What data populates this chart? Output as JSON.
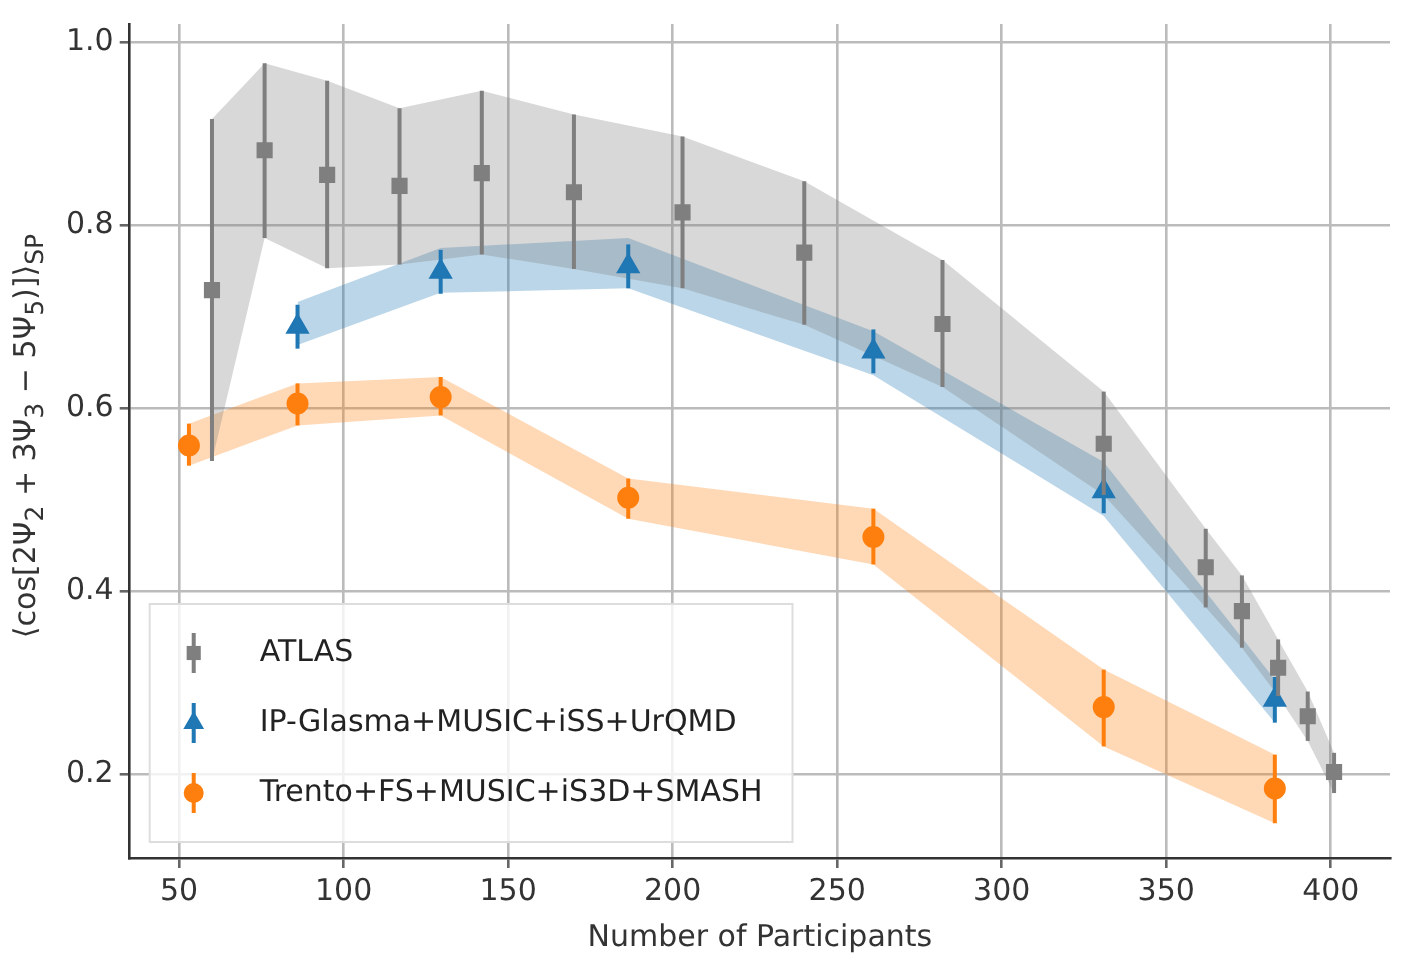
{
  "chart_data": {
    "type": "scatter",
    "xlabel": "Number of Participants",
    "ylabel": "⟨cos[2Ψ$_{2}$ + 3Ψ$_{3}$ − 5Ψ$_{5}$)]⟩$_{SP}$",
    "xlim": [
      35,
      418
    ],
    "ylim": [
      0.108,
      1.02
    ],
    "xticks": [
      50,
      100,
      150,
      200,
      250,
      300,
      350,
      400
    ],
    "yticks": [
      0.2,
      0.4,
      0.6,
      0.8,
      {
        "value": 1,
        "label": "1.0"
      }
    ],
    "grid": true,
    "legend": "bottom left",
    "series": [
      {
        "name": "ATLAS",
        "color": "#7f7f7f",
        "marker": "square",
        "x": [
          60,
          76,
          95,
          117,
          142,
          170,
          203,
          240,
          282,
          331,
          362,
          373,
          384,
          393,
          401
        ],
        "values": [
          0.729,
          0.882,
          0.855,
          0.843,
          0.857,
          0.836,
          0.814,
          0.77,
          0.692,
          0.561,
          0.426,
          0.378,
          0.316,
          0.263,
          0.202
        ],
        "errors": [
          [
            0.542,
            0.916
          ],
          [
            0.786,
            0.977
          ],
          [
            0.753,
            0.958
          ],
          [
            0.757,
            0.928
          ],
          [
            0.768,
            0.947
          ],
          [
            0.752,
            0.921
          ],
          [
            0.731,
            0.897
          ],
          [
            0.691,
            0.848
          ],
          [
            0.623,
            0.762
          ],
          [
            0.505,
            0.618
          ],
          [
            0.382,
            0.468
          ],
          [
            0.338,
            0.417
          ],
          [
            0.285,
            0.347
          ],
          [
            0.236,
            0.29
          ],
          [
            0.179,
            0.223
          ]
        ],
        "lower": [
          0.542,
          0.786,
          0.753,
          0.757,
          0.768,
          0.752,
          0.731,
          0.691,
          0.623,
          0.505,
          0.382,
          0.338,
          0.285,
          0.236,
          0.179
        ],
        "upper": [
          0.916,
          0.977,
          0.958,
          0.928,
          0.947,
          0.921,
          0.897,
          0.848,
          0.762,
          0.618,
          0.468,
          0.417,
          0.347,
          0.29,
          0.223
        ]
      },
      {
        "name": "IP-Glasma+MUSIC+iSS+UrQMD",
        "color": "#1f77b4",
        "marker": "triangle",
        "x": [
          86,
          129.5,
          186.5,
          261,
          331,
          383
        ],
        "values": [
          0.689,
          0.749,
          0.755,
          0.662,
          0.509,
          0.281
        ],
        "errors": [
          0.024,
          0.024,
          0.024,
          0.024,
          0.024,
          0.025
        ],
        "lower": [
          0.669,
          0.726,
          0.731,
          0.636,
          0.482,
          0.256
        ],
        "upper": [
          0.716,
          0.775,
          0.786,
          0.684,
          0.541,
          0.303
        ]
      },
      {
        "name": "Trento+FS+MUSIC+iS3D+SMASH",
        "color": "#ff7f0e",
        "marker": "circle",
        "x": [
          53,
          86,
          129.5,
          186.5,
          261,
          331,
          383
        ],
        "values": [
          0.559,
          0.605,
          0.612,
          0.502,
          0.459,
          0.273,
          0.184
        ],
        "errors": [
          [
            0.537,
            0.583
          ],
          [
            0.581,
            0.627
          ],
          [
            0.592,
            0.634
          ],
          [
            0.479,
            0.523
          ],
          [
            0.429,
            0.49
          ],
          [
            0.23,
            0.314
          ],
          [
            0.146,
            0.221
          ]
        ],
        "lower": [
          0.537,
          0.581,
          0.592,
          0.479,
          0.429,
          0.23,
          0.146
        ],
        "upper": [
          0.583,
          0.627,
          0.634,
          0.523,
          0.49,
          0.314,
          0.221
        ]
      }
    ]
  }
}
